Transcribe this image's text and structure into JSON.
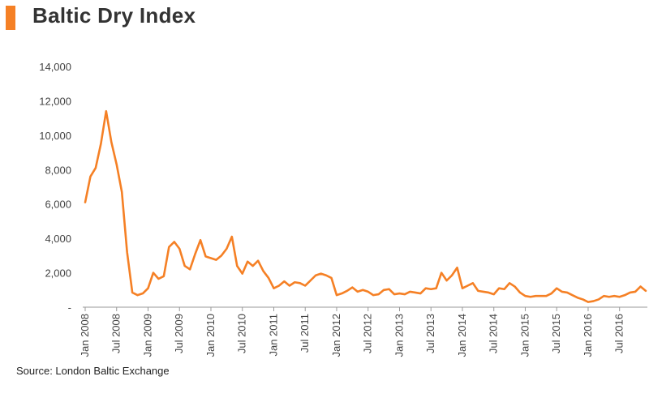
{
  "title": "Baltic Dry Index",
  "source": "Source: London Baltic Exchange",
  "colors": {
    "accent": "#f58025",
    "line": "#f58025",
    "axis": "#999999"
  },
  "chart_data": {
    "type": "line",
    "title": "Baltic Dry Index",
    "xlabel": "",
    "ylabel": "",
    "ylim": [
      0,
      14000
    ],
    "y_ticks": [
      "-",
      "2,000",
      "4,000",
      "6,000",
      "8,000",
      "10,000",
      "12,000",
      "14,000"
    ],
    "x_tick_labels": [
      "Jan 2008",
      "Jul 2008",
      "Jan 2009",
      "Jul 2009",
      "Jan 2010",
      "Jul 2010",
      "Jan 2011",
      "Jul 2011",
      "Jan 2012",
      "Jul 2012",
      "Jan 2013",
      "Jul 2013",
      "Jan 2014",
      "Jul 2014",
      "Jan 2015",
      "Jul 2015",
      "Jan 2016",
      "Jul 2016"
    ],
    "grid": false,
    "x_start": "Jan 2008",
    "x_end": "Nov 2016",
    "series": [
      {
        "values": [
          6100,
          7600,
          8100,
          9500,
          11400,
          9600,
          8300,
          6700,
          3200,
          850,
          700,
          800,
          1100,
          2000,
          1650,
          1800,
          3500,
          3800,
          3400,
          2400,
          2200,
          3100,
          3900,
          2950,
          2850,
          2750,
          3000,
          3400,
          4100,
          2400,
          1950,
          2650,
          2400,
          2700,
          2100,
          1700,
          1100,
          1250,
          1500,
          1250,
          1450,
          1400,
          1250,
          1550,
          1850,
          1950,
          1850,
          1700,
          700,
          800,
          950,
          1150,
          900,
          1000,
          900,
          700,
          750,
          1000,
          1050,
          750,
          800,
          750,
          900,
          850,
          800,
          1100,
          1050,
          1100,
          2000,
          1550,
          1850,
          2300,
          1100,
          1250,
          1400,
          950,
          900,
          850,
          750,
          1100,
          1050,
          1400,
          1200,
          850,
          650,
          600,
          650,
          650,
          650,
          800,
          1100,
          900,
          850,
          700,
          550,
          450,
          300,
          350,
          450,
          650,
          600,
          650,
          600,
          700,
          850,
          900,
          1200,
          950
        ]
      }
    ]
  }
}
